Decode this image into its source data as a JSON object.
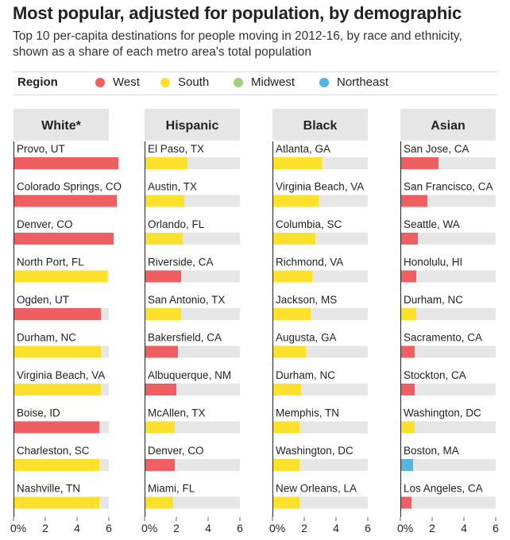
{
  "title": "Most popular, adjusted for population, by demographic",
  "subtitle": "Top 10 per-capita destinations for people moving in 2012-16, by race and ethnicity, shown as a share of each metro area's total population",
  "legend": {
    "title": "Region",
    "items": [
      {
        "label": "West",
        "color": "#ef5f61"
      },
      {
        "label": "South",
        "color": "#fbe12c"
      },
      {
        "label": "Midwest",
        "color": "#9dd37a"
      },
      {
        "label": "Northeast",
        "color": "#56b4e0"
      }
    ]
  },
  "colors": {
    "track": "#e6e6e6",
    "header_bg": "#e6e6e6",
    "axis": "#222222"
  },
  "chart_data": {
    "type": "bar",
    "orientation": "horizontal",
    "x_ticks": [
      "0%",
      "2",
      "4",
      "6"
    ],
    "xlim": [
      0,
      6
    ],
    "panels": [
      {
        "name": "White*",
        "rows": [
          {
            "label": "Provo, UT",
            "value": 6.6,
            "region": "West"
          },
          {
            "label": "Colorado Springs, CO",
            "value": 6.5,
            "region": "West"
          },
          {
            "label": "Denver, CO",
            "value": 6.3,
            "region": "West"
          },
          {
            "label": "North Port, FL",
            "value": 5.9,
            "region": "South"
          },
          {
            "label": "Ogden, UT",
            "value": 5.5,
            "region": "West"
          },
          {
            "label": "Durham, NC",
            "value": 5.5,
            "region": "South"
          },
          {
            "label": "Virginia Beach, VA",
            "value": 5.5,
            "region": "South"
          },
          {
            "label": "Boise, ID",
            "value": 5.4,
            "region": "West"
          },
          {
            "label": "Charleston, SC",
            "value": 5.4,
            "region": "South"
          },
          {
            "label": "Nashville, TN",
            "value": 5.4,
            "region": "South"
          }
        ]
      },
      {
        "name": "Hispanic",
        "rows": [
          {
            "label": "El Paso, TX",
            "value": 2.7,
            "region": "South"
          },
          {
            "label": "Austin, TX",
            "value": 2.5,
            "region": "South"
          },
          {
            "label": "Orlando, FL",
            "value": 2.4,
            "region": "South"
          },
          {
            "label": "Riverside, CA",
            "value": 2.3,
            "region": "West"
          },
          {
            "label": "San Antonio, TX",
            "value": 2.3,
            "region": "South"
          },
          {
            "label": "Bakersfield, CA",
            "value": 2.1,
            "region": "West"
          },
          {
            "label": "Albuquerque, NM",
            "value": 2.0,
            "region": "West"
          },
          {
            "label": "McAllen, TX",
            "value": 1.9,
            "region": "South"
          },
          {
            "label": "Denver, CO",
            "value": 1.9,
            "region": "West"
          },
          {
            "label": "Miami, FL",
            "value": 1.8,
            "region": "South"
          }
        ]
      },
      {
        "name": "Black",
        "rows": [
          {
            "label": "Atlanta, GA",
            "value": 3.1,
            "region": "South"
          },
          {
            "label": "Virginia Beach, VA",
            "value": 2.9,
            "region": "South"
          },
          {
            "label": "Columbia, SC",
            "value": 2.7,
            "region": "South"
          },
          {
            "label": "Richmond, VA",
            "value": 2.5,
            "region": "South"
          },
          {
            "label": "Jackson, MS",
            "value": 2.4,
            "region": "South"
          },
          {
            "label": "Augusta, GA",
            "value": 2.1,
            "region": "South"
          },
          {
            "label": "Durham, NC",
            "value": 1.8,
            "region": "South"
          },
          {
            "label": "Memphis, TN",
            "value": 1.7,
            "region": "South"
          },
          {
            "label": "Washington, DC",
            "value": 1.7,
            "region": "South"
          },
          {
            "label": "New Orleans, LA",
            "value": 1.7,
            "region": "South"
          }
        ]
      },
      {
        "name": "Asian",
        "rows": [
          {
            "label": "San Jose, CA",
            "value": 2.4,
            "region": "West"
          },
          {
            "label": "San Francisco, CA",
            "value": 1.7,
            "region": "West"
          },
          {
            "label": "Seattle, WA",
            "value": 1.1,
            "region": "West"
          },
          {
            "label": "Honolulu, HI",
            "value": 1.0,
            "region": "West"
          },
          {
            "label": "Durham, NC",
            "value": 1.0,
            "region": "South"
          },
          {
            "label": "Sacramento, CA",
            "value": 0.9,
            "region": "West"
          },
          {
            "label": "Stockton, CA",
            "value": 0.9,
            "region": "West"
          },
          {
            "label": "Washington, DC",
            "value": 0.9,
            "region": "South"
          },
          {
            "label": "Boston, MA",
            "value": 0.8,
            "region": "Northeast"
          },
          {
            "label": "Los Angeles, CA",
            "value": 0.7,
            "region": "West"
          }
        ]
      }
    ]
  }
}
